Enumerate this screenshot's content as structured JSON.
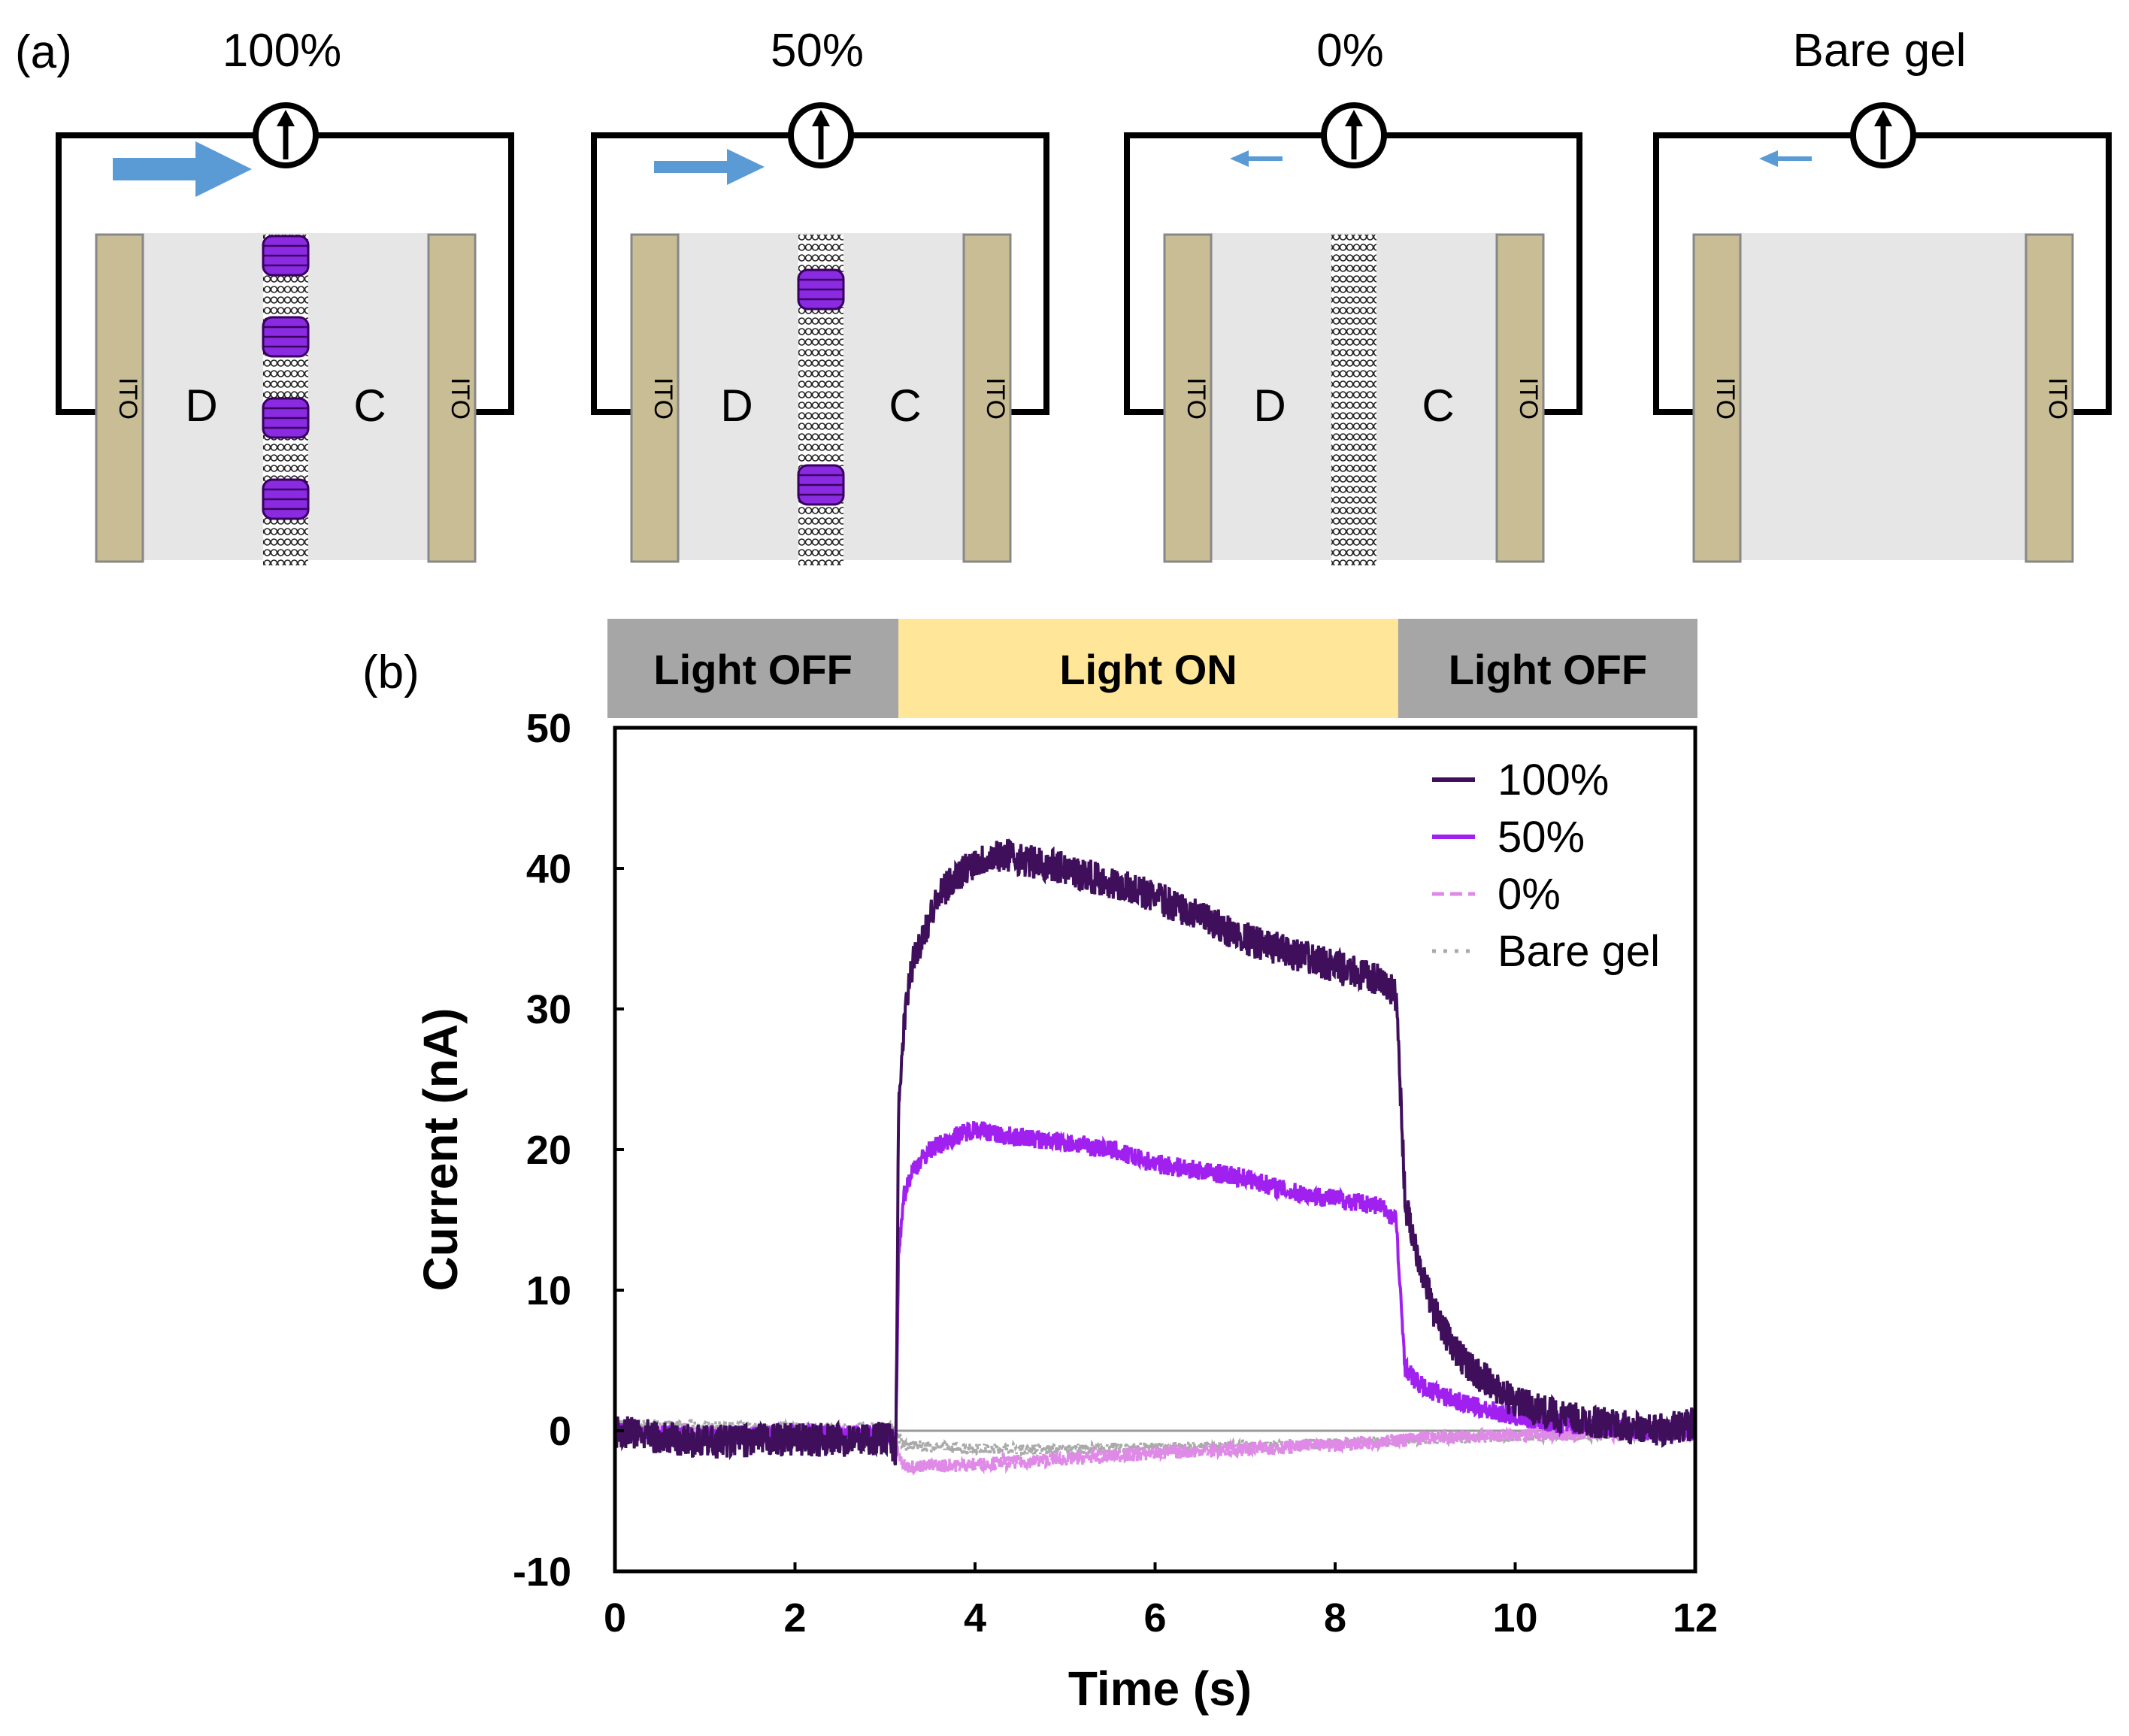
{
  "panel_a": {
    "label": "(a)",
    "electrode_label": "ITO",
    "colors": {
      "electrode": "#c8bd94",
      "gel": "#e6e6e6",
      "protein": "#8a2be2",
      "arrow": "#5b9bd5"
    },
    "cells": [
      {
        "title": "100%",
        "left_label": "D",
        "right_label": "C",
        "membrane": true,
        "proteins": 4,
        "arrow": "large"
      },
      {
        "title": "50%",
        "left_label": "D",
        "right_label": "C",
        "membrane": true,
        "proteins": 2,
        "arrow": "medium"
      },
      {
        "title": "0%",
        "left_label": "D",
        "right_label": "C",
        "membrane": true,
        "proteins": 0,
        "arrow": "small-reverse"
      },
      {
        "title": "Bare gel",
        "left_label": "",
        "right_label": "",
        "membrane": false,
        "proteins": 0,
        "arrow": "small-reverse"
      }
    ]
  },
  "panel_b": {
    "label": "(b)",
    "light_bar": [
      {
        "label": "Light OFF",
        "from": 0,
        "to": 3.15,
        "color": "#a6a6a6"
      },
      {
        "label": "Light ON",
        "from": 3.15,
        "to": 8.7,
        "color": "#ffe699"
      },
      {
        "label": "Light OFF",
        "from": 8.7,
        "to": 12,
        "color": "#a6a6a6"
      }
    ]
  },
  "chart_data": {
    "type": "line",
    "xlabel": "Time (s)",
    "ylabel": "Current (nA)",
    "xlim": [
      0,
      12
    ],
    "ylim": [
      -10,
      50
    ],
    "xticks": [
      0,
      2,
      4,
      6,
      8,
      10,
      12
    ],
    "yticks": [
      -10,
      0,
      10,
      20,
      30,
      40,
      50
    ],
    "grid": false,
    "legend": "top-right",
    "zero_line_color": "#999999",
    "series": [
      {
        "name": "100%",
        "color": "#3f0f5c",
        "style": "solid",
        "noise": 1.2,
        "x": [
          0,
          0.5,
          1.0,
          1.5,
          2.0,
          2.5,
          3.05,
          3.12,
          3.15,
          3.2,
          3.25,
          3.3,
          3.4,
          3.6,
          3.8,
          4.0,
          4.3,
          4.6,
          5.0,
          5.5,
          6.0,
          6.5,
          7.0,
          7.5,
          8.0,
          8.5,
          8.68,
          8.72,
          8.78,
          8.9,
          9.0,
          9.1,
          9.3,
          9.5,
          9.8,
          10.0,
          10.5,
          11.0,
          11.5,
          12.0
        ],
        "y": [
          0,
          -0.5,
          -0.8,
          -0.7,
          -0.6,
          -0.7,
          -0.5,
          -1.5,
          22,
          28,
          31,
          33,
          35,
          38,
          39.5,
          40.5,
          41,
          40.5,
          40,
          39,
          38,
          36.5,
          35,
          34,
          33,
          32,
          31,
          25,
          16,
          13,
          10.5,
          8.5,
          6,
          4.5,
          3,
          2,
          1,
          0.5,
          0,
          0.5
        ]
      },
      {
        "name": "50%",
        "color": "#a020f0",
        "style": "solid",
        "noise": 0.7,
        "x": [
          0,
          0.5,
          1.0,
          1.5,
          2.0,
          2.5,
          3.05,
          3.12,
          3.15,
          3.2,
          3.3,
          3.5,
          3.8,
          4.0,
          4.3,
          4.6,
          5.0,
          5.5,
          6.0,
          6.5,
          7.0,
          7.5,
          8.0,
          8.5,
          8.68,
          8.72,
          8.78,
          8.9,
          9.0,
          9.2,
          9.5,
          10.0,
          10.5,
          11.0,
          11.5,
          12.0
        ],
        "y": [
          0,
          -0.3,
          -0.4,
          -0.3,
          -0.3,
          -0.3,
          -0.3,
          -1.0,
          12,
          16.5,
          18.5,
          20,
          21,
          21.5,
          21,
          20.8,
          20.5,
          20,
          19,
          18.5,
          18,
          17,
          16.5,
          16,
          15,
          10,
          4.5,
          3.5,
          3,
          2.5,
          1.8,
          1,
          0.5,
          0.3,
          0,
          0
        ]
      },
      {
        "name": "0%",
        "color": "#e08ae8",
        "style": "dashed",
        "noise": 0.5,
        "x": [
          0,
          1.0,
          2.0,
          3.1,
          3.15,
          3.2,
          3.5,
          4.0,
          5.0,
          6.0,
          7.0,
          8.0,
          8.7,
          9.0,
          10.0,
          11.0,
          12.0
        ],
        "y": [
          0,
          -0.3,
          -0.2,
          -0.2,
          -1.8,
          -2.5,
          -2.5,
          -2.4,
          -2.0,
          -1.6,
          -1.3,
          -1.0,
          -0.7,
          -0.5,
          -0.3,
          -0.2,
          -0.2
        ]
      },
      {
        "name": "Bare gel",
        "color": "#aaaaaa",
        "style": "dotted",
        "noise": 0.4,
        "x": [
          0,
          1.0,
          2.0,
          3.1,
          3.2,
          4.0,
          5.0,
          6.0,
          7.0,
          8.0,
          9.0,
          10.0,
          11.0,
          12.0
        ],
        "y": [
          0.5,
          0.3,
          0.2,
          0.2,
          -1.0,
          -1.3,
          -1.3,
          -1.2,
          -1.1,
          -0.9,
          -0.6,
          -0.4,
          -0.3,
          -0.3
        ]
      }
    ]
  }
}
